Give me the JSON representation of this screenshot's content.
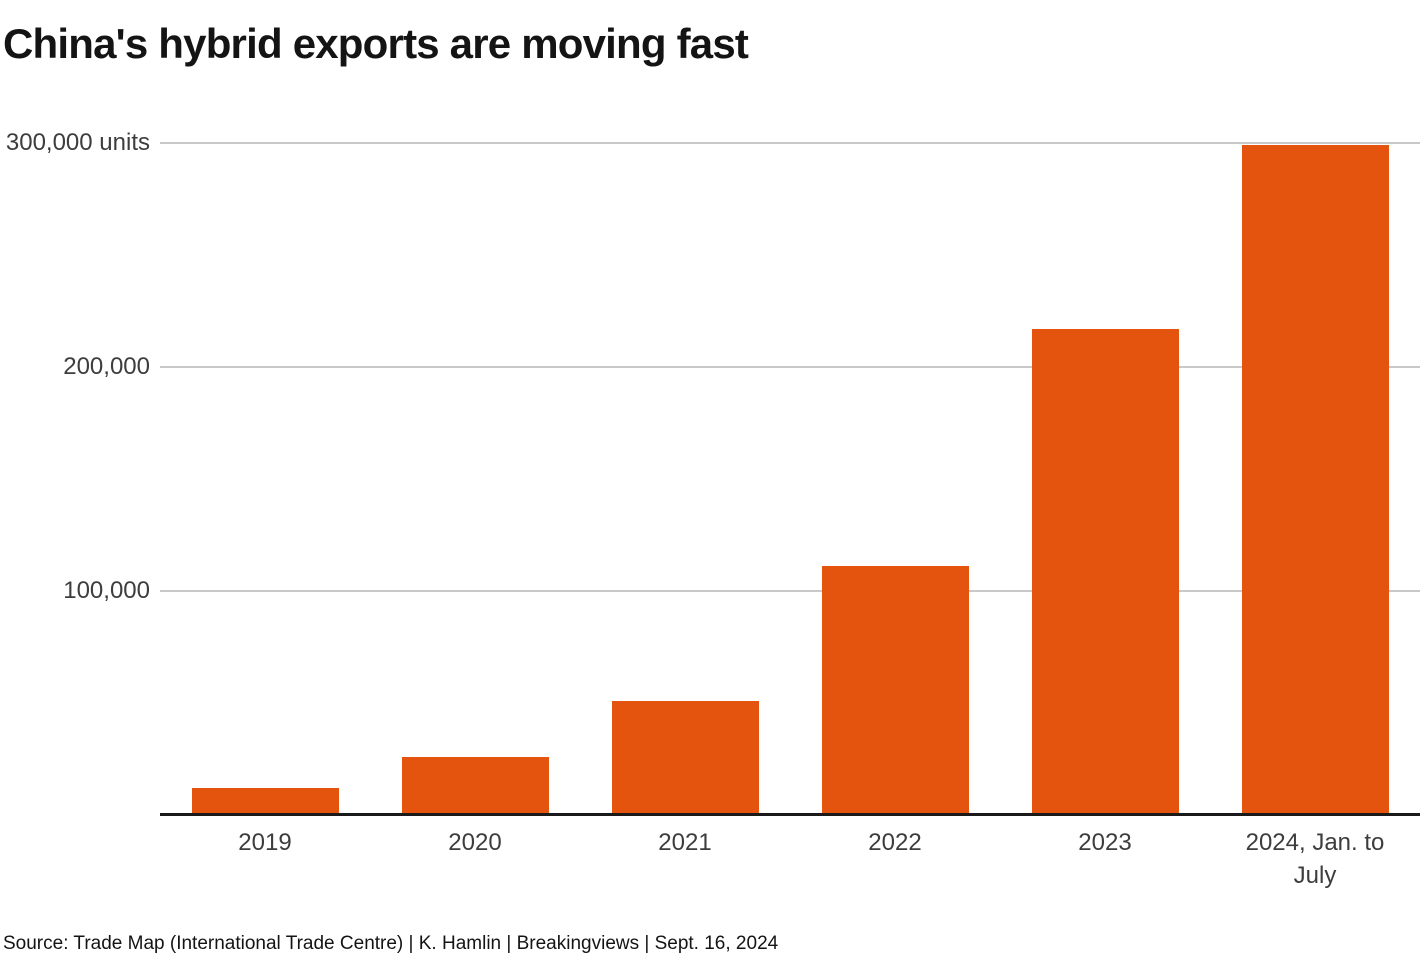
{
  "chart_data": {
    "type": "bar",
    "title": "China's hybrid exports are moving fast",
    "categories": [
      "2019",
      "2020",
      "2021",
      "2022",
      "2023",
      "2024, Jan. to\nJuly"
    ],
    "values": [
      12000,
      26000,
      51000,
      111000,
      217000,
      299000
    ],
    "ylim": [
      0,
      300000
    ],
    "yticks": [
      {
        "value": 100000,
        "label": "100,000"
      },
      {
        "value": 200000,
        "label": "200,000"
      },
      {
        "value": 300000,
        "label": "300,000 units"
      }
    ],
    "xlabel": "",
    "ylabel": "units",
    "grid": true,
    "legend": false,
    "bar_color": "#E4540E",
    "gridline_color": "#c9c9c9",
    "axis_color": "#1a1a1a",
    "tick_text_color": "#3d3d3d",
    "title_color": "#141414",
    "source": "Source: Trade Map (International Trade Centre) | K. Hamlin | Breakingviews | Sept. 16, 2024"
  }
}
